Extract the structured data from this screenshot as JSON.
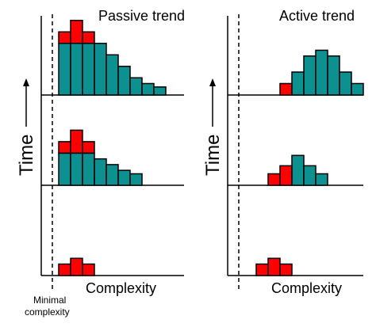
{
  "panels": [
    {
      "title": "Passive trend",
      "xlabel": "Complexity",
      "ylabel": "Time",
      "rows": [
        {
          "bars": [
            {
              "pos": 0,
              "teal": 4.5,
              "red": 1
            },
            {
              "pos": 1,
              "teal": 4.5,
              "red": 2
            },
            {
              "pos": 2,
              "teal": 4.5,
              "red": 1
            },
            {
              "pos": 3,
              "teal": 4.5,
              "red": 0
            },
            {
              "pos": 4,
              "teal": 3.5,
              "red": 0
            },
            {
              "pos": 5,
              "teal": 2.5,
              "red": 0
            },
            {
              "pos": 6,
              "teal": 1.5,
              "red": 0
            },
            {
              "pos": 7,
              "teal": 1.0,
              "red": 0
            },
            {
              "pos": 8,
              "teal": 0.7,
              "red": 0
            }
          ]
        },
        {
          "bars": [
            {
              "pos": 0,
              "teal": 2.8,
              "red": 1
            },
            {
              "pos": 1,
              "teal": 2.8,
              "red": 2
            },
            {
              "pos": 2,
              "teal": 2.8,
              "red": 1
            },
            {
              "pos": 3,
              "teal": 2.3,
              "red": 0
            },
            {
              "pos": 4,
              "teal": 1.8,
              "red": 0
            },
            {
              "pos": 5,
              "teal": 1.3,
              "red": 0
            },
            {
              "pos": 6,
              "teal": 1.0,
              "red": 0
            }
          ]
        },
        {
          "bars": [
            {
              "pos": 0,
              "teal": 0,
              "red": 1
            },
            {
              "pos": 1,
              "teal": 0,
              "red": 1.5
            },
            {
              "pos": 2,
              "teal": 0,
              "red": 1
            }
          ]
        }
      ]
    },
    {
      "title": "Active trend",
      "xlabel": "Complexity",
      "ylabel": "Time",
      "rows": [
        {
          "bars": [
            {
              "pos": 3,
              "teal": 0,
              "red": 1.0
            },
            {
              "pos": 4,
              "teal": 2.0,
              "red": 0
            },
            {
              "pos": 5,
              "teal": 3.4,
              "red": 0
            },
            {
              "pos": 6,
              "teal": 3.9,
              "red": 0
            },
            {
              "pos": 7,
              "teal": 3.4,
              "red": 0
            },
            {
              "pos": 8,
              "teal": 2.0,
              "red": 0
            },
            {
              "pos": 9,
              "teal": 1.0,
              "red": 0
            }
          ]
        },
        {
          "bars": [
            {
              "pos": 2,
              "teal": 0,
              "red": 1.0
            },
            {
              "pos": 3,
              "teal": 0,
              "red": 1.7
            },
            {
              "pos": 4,
              "teal": 2.6,
              "red": 0
            },
            {
              "pos": 5,
              "teal": 1.7,
              "red": 0
            },
            {
              "pos": 6,
              "teal": 1.0,
              "red": 0
            }
          ]
        },
        {
          "bars": [
            {
              "pos": 1,
              "teal": 0,
              "red": 1.0
            },
            {
              "pos": 2,
              "teal": 0,
              "red": 1.5
            },
            {
              "pos": 3,
              "teal": 0,
              "red": 1.0
            }
          ]
        }
      ]
    }
  ],
  "minimal_label": [
    "Minimal",
    "complexity"
  ],
  "colors": {
    "teal": "#0d9090",
    "red": "#ff0000",
    "line": "#000000"
  }
}
